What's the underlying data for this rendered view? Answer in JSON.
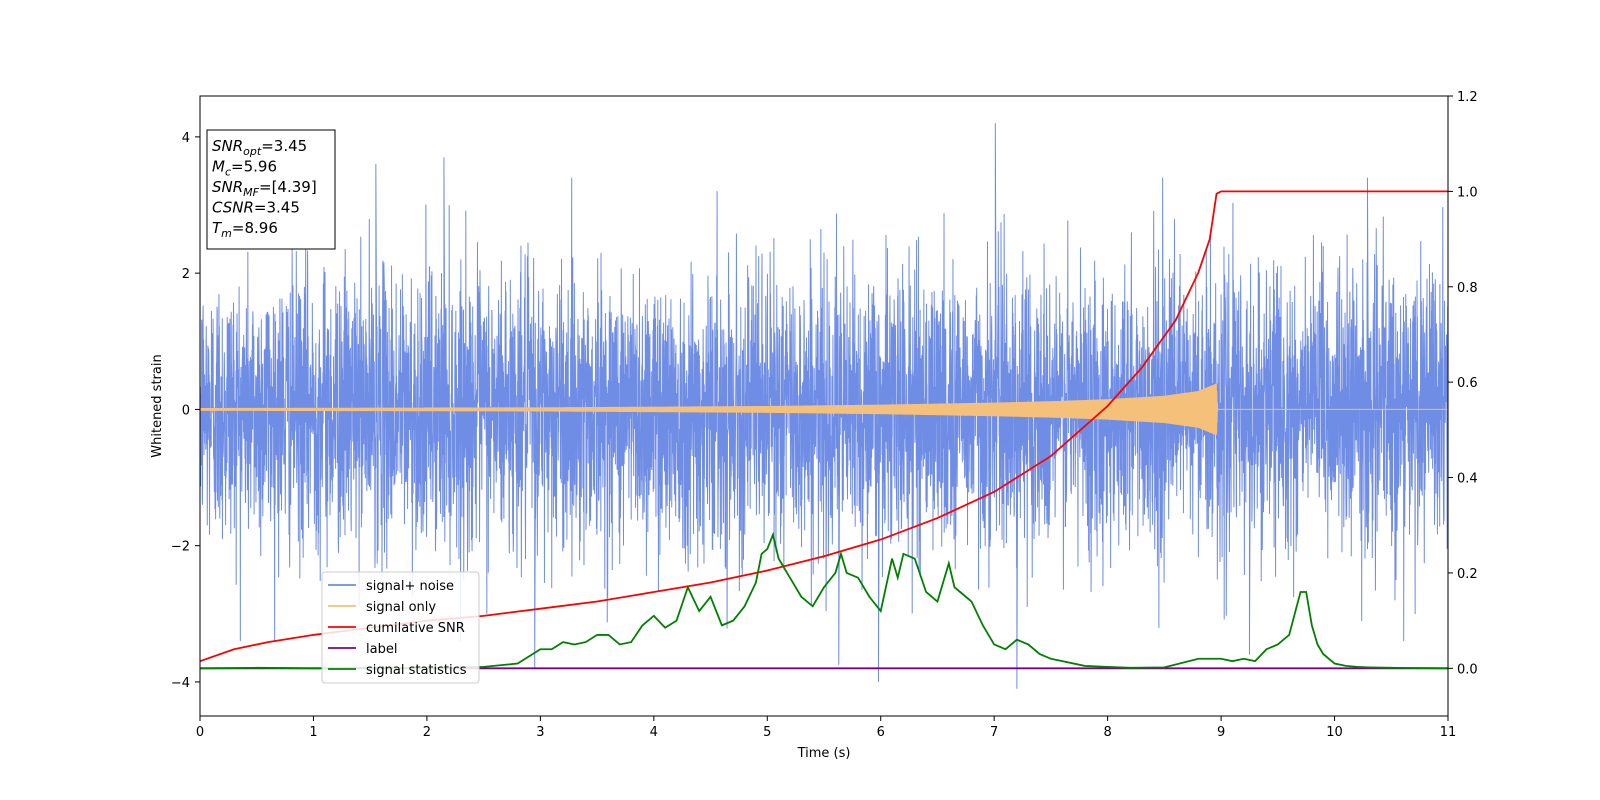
{
  "chart_data": {
    "type": "line",
    "xlabel": "Time (s)",
    "ylabel": "Whitened strain",
    "xlim": [
      0,
      11
    ],
    "ylim_left": [
      -4.5,
      4.6
    ],
    "ylim_right": [
      -0.1,
      1.2
    ],
    "x_ticks": [
      0,
      1,
      2,
      3,
      4,
      5,
      6,
      7,
      8,
      9,
      10,
      11
    ],
    "y_left_ticks": [
      -4,
      -2,
      0,
      2,
      4
    ],
    "y_right_ticks": [
      0.0,
      0.2,
      0.4,
      0.6,
      0.8,
      1.0,
      1.2
    ],
    "x_tick_labels": [
      "0",
      "1",
      "2",
      "3",
      "4",
      "5",
      "6",
      "7",
      "8",
      "9",
      "10",
      "11"
    ],
    "y_left_tick_labels": [
      "−4",
      "−2",
      "0",
      "2",
      "4"
    ],
    "y_right_tick_labels": [
      "0.0",
      "0.2",
      "0.4",
      "0.6",
      "0.8",
      "1.0",
      "1.2"
    ],
    "legend_position": "lower-left",
    "info_box": {
      "position": "top-left",
      "lines": [
        {
          "base": "SNR",
          "sub": "opt",
          "value": "=3.45"
        },
        {
          "base": "M",
          "sub": "c",
          "value": "=5.96"
        },
        {
          "base": "SNR",
          "sub": "MF",
          "value": "=[4.39]"
        },
        {
          "base": "CSNR",
          "sub": "",
          "value": "=3.45"
        },
        {
          "base": "T",
          "sub": "m",
          "value": "=8.96"
        }
      ]
    },
    "series": [
      {
        "name": "signal+ noise",
        "axis": "left",
        "color": "#6f8de5",
        "style": "dense noise trace, std ≈ 1, peaks up to ~4.2 near t=7.0 and down to ~-4.0 near t=5.98",
        "extremes": [
          [
            1.55,
            3.6
          ],
          [
            2.15,
            3.7
          ],
          [
            7.01,
            4.2
          ],
          [
            10.29,
            3.4
          ],
          [
            2.95,
            -3.8
          ],
          [
            5.63,
            -3.75
          ],
          [
            5.98,
            -4.0
          ],
          [
            7.2,
            -4.1
          ],
          [
            9.25,
            -3.6
          ]
        ]
      },
      {
        "name": "signal only",
        "axis": "left",
        "color": "#f5c07a",
        "style": "chirp, amplitude grows from ~0.02 at t=0 to ~0.35 at t=8.96 then zero",
        "amplitude_points": [
          [
            0,
            0.02
          ],
          [
            3,
            0.03
          ],
          [
            5,
            0.05
          ],
          [
            6,
            0.07
          ],
          [
            7,
            0.1
          ],
          [
            7.5,
            0.12
          ],
          [
            8,
            0.15
          ],
          [
            8.5,
            0.2
          ],
          [
            8.8,
            0.27
          ],
          [
            8.96,
            0.38
          ],
          [
            8.97,
            0
          ],
          [
            11,
            0
          ]
        ]
      },
      {
        "name": "cumilative SNR",
        "axis": "right",
        "color": "#ff0000",
        "x": [
          0,
          0.3,
          0.6,
          1,
          1.5,
          2,
          2.5,
          3,
          3.5,
          4,
          4.5,
          5,
          5.5,
          6,
          6.5,
          7,
          7.5,
          8,
          8.3,
          8.6,
          8.8,
          8.9,
          8.96,
          9.0,
          11
        ],
        "y": [
          0.015,
          0.04,
          0.055,
          0.07,
          0.085,
          0.1,
          0.11,
          0.125,
          0.14,
          0.16,
          0.18,
          0.205,
          0.235,
          0.27,
          0.315,
          0.37,
          0.445,
          0.55,
          0.63,
          0.73,
          0.83,
          0.9,
          0.995,
          1.0,
          1.0
        ]
      },
      {
        "name": "label",
        "axis": "right",
        "color": "#800080",
        "x": [
          0,
          11
        ],
        "y": [
          0.0,
          0.0
        ]
      },
      {
        "name": "signal statistics",
        "axis": "right",
        "color": "#008000",
        "x": [
          0,
          0.5,
          1,
          1.5,
          2,
          2.5,
          2.8,
          3.0,
          3.1,
          3.2,
          3.3,
          3.4,
          3.5,
          3.6,
          3.7,
          3.8,
          3.9,
          4.0,
          4.1,
          4.2,
          4.3,
          4.4,
          4.5,
          4.6,
          4.7,
          4.8,
          4.9,
          4.95,
          5.0,
          5.05,
          5.1,
          5.2,
          5.3,
          5.4,
          5.5,
          5.6,
          5.65,
          5.7,
          5.8,
          5.9,
          6.0,
          6.1,
          6.15,
          6.2,
          6.3,
          6.4,
          6.5,
          6.6,
          6.65,
          6.7,
          6.8,
          6.9,
          7.0,
          7.1,
          7.2,
          7.3,
          7.4,
          7.5,
          7.6,
          7.8,
          8.0,
          8.2,
          8.5,
          8.8,
          8.9,
          9.0,
          9.1,
          9.2,
          9.3,
          9.4,
          9.5,
          9.6,
          9.7,
          9.75,
          9.8,
          9.85,
          9.9,
          10.0,
          10.1,
          10.2,
          10.3,
          10.5,
          11.0
        ],
        "y": [
          0.0,
          0.001,
          0.0,
          0.001,
          0.0,
          0.003,
          0.01,
          0.04,
          0.04,
          0.055,
          0.05,
          0.055,
          0.07,
          0.07,
          0.05,
          0.055,
          0.09,
          0.11,
          0.085,
          0.1,
          0.17,
          0.12,
          0.15,
          0.09,
          0.1,
          0.13,
          0.18,
          0.24,
          0.25,
          0.28,
          0.23,
          0.19,
          0.15,
          0.13,
          0.17,
          0.2,
          0.24,
          0.2,
          0.19,
          0.15,
          0.12,
          0.23,
          0.19,
          0.24,
          0.23,
          0.16,
          0.14,
          0.22,
          0.17,
          0.16,
          0.14,
          0.09,
          0.05,
          0.04,
          0.06,
          0.05,
          0.03,
          0.02,
          0.015,
          0.005,
          0.003,
          0.001,
          0.002,
          0.02,
          0.02,
          0.02,
          0.015,
          0.02,
          0.015,
          0.04,
          0.05,
          0.07,
          0.16,
          0.16,
          0.09,
          0.05,
          0.03,
          0.01,
          0.005,
          0.003,
          0.002,
          0.001,
          0.0
        ]
      }
    ]
  }
}
